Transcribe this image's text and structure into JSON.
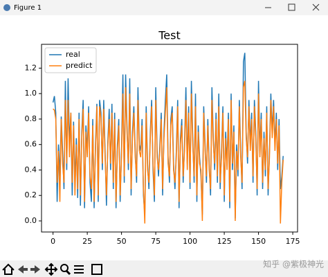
{
  "window": {
    "title": "Figure 1"
  },
  "watermark": "知乎 @紫极神光",
  "chart_data": {
    "type": "line",
    "title": "Test",
    "x": [
      0,
      1,
      2,
      3,
      4,
      5,
      6,
      7,
      8,
      9,
      10,
      11,
      12,
      13,
      14,
      15,
      16,
      17,
      18,
      19,
      20,
      21,
      22,
      23,
      24,
      25,
      26,
      27,
      28,
      29,
      30,
      31,
      32,
      33,
      34,
      35,
      36,
      37,
      38,
      39,
      40,
      41,
      42,
      43,
      44,
      45,
      46,
      47,
      48,
      49,
      50,
      51,
      52,
      53,
      54,
      55,
      56,
      57,
      58,
      59,
      60,
      61,
      62,
      63,
      64,
      65,
      66,
      67,
      68,
      69,
      70,
      71,
      72,
      73,
      74,
      75,
      76,
      77,
      78,
      79,
      80,
      81,
      82,
      83,
      84,
      85,
      86,
      87,
      88,
      89,
      90,
      91,
      92,
      93,
      94,
      95,
      96,
      97,
      98,
      99,
      100,
      101,
      102,
      103,
      104,
      105,
      106,
      107,
      108,
      109,
      110,
      111,
      112,
      113,
      114,
      115,
      116,
      117,
      118,
      119,
      120,
      121,
      122,
      123,
      124,
      125,
      126,
      127,
      128,
      129,
      130,
      131,
      132,
      133,
      134,
      135,
      136,
      137,
      138,
      139,
      140,
      141,
      142,
      143,
      144,
      145,
      146,
      147,
      148,
      149,
      150,
      151,
      152,
      153,
      154,
      155,
      156,
      157,
      158,
      159,
      160,
      161,
      162,
      163,
      164,
      165,
      166,
      167,
      168
    ],
    "series": [
      {
        "name": "real",
        "color": "#1f77b4",
        "values": [
          0.93,
          0.98,
          0.85,
          0.15,
          0.6,
          0.35,
          0.82,
          0.55,
          0.25,
          1.1,
          0.4,
          1.12,
          0.6,
          0.85,
          0.2,
          0.78,
          0.3,
          0.65,
          0.18,
          0.85,
          0.12,
          0.7,
          0.95,
          0.1,
          0.75,
          0.55,
          0.9,
          0.3,
          0.15,
          0.8,
          0.1,
          0.6,
          0.92,
          0.15,
          0.95,
          0.85,
          0.4,
          0.95,
          0.55,
          0.12,
          0.62,
          0.88,
          0.4,
          0.92,
          0.25,
          0.85,
          0.1,
          0.6,
          0.8,
          0.15,
          0.55,
          1.15,
          0.3,
          1.15,
          0.75,
          0.4,
          1.12,
          0.2,
          0.7,
          0.9,
          0.55,
          0.3,
          1.05,
          0.6,
          0.55,
          0.8,
          0.2,
          0.05,
          0.9,
          0.45,
          0.25,
          0.7,
          0.95,
          0.4,
          0.15,
          1.05,
          0.55,
          0.35,
          0.6,
          0.85,
          0.2,
          0.7,
          0.95,
          1.15,
          0.5,
          0.3,
          0.8,
          0.9,
          0.45,
          0.25,
          0.55,
          0.95,
          0.1,
          0.65,
          0.8,
          0.3,
          0.6,
          1.05,
          0.45,
          0.9,
          0.25,
          1.1,
          0.65,
          0.3,
          1.0,
          0.15,
          0.75,
          0.5,
          0.35,
          0.05,
          0.9,
          0.6,
          0.3,
          0.8,
          0.45,
          0.2,
          1.05,
          0.65,
          0.4,
          0.85,
          0.3,
          1.0,
          0.25,
          0.55,
          0.9,
          0.15,
          0.7,
          0.45,
          0.85,
          0.1,
          1.0,
          0.4,
          0.75,
          0.02,
          0.6,
          0.35,
          0.95,
          0.55,
          0.25,
          1.25,
          1.32,
          0.7,
          0.45,
          0.95,
          0.6,
          0.85,
          0.3,
          0.95,
          0.7,
          0.2,
          1.1,
          0.55,
          0.85,
          0.25,
          0.7,
          0.35,
          0.9,
          0.2,
          0.55,
          1.0,
          0.7,
          0.95,
          0.6,
          0.85,
          0.4,
          0.8,
          0.25,
          0.35,
          0.51
        ]
      },
      {
        "name": "predict",
        "color": "#ff7f0e",
        "values": [
          0.88,
          0.87,
          0.8,
          0.3,
          0.55,
          0.15,
          0.8,
          0.45,
          0.3,
          0.95,
          0.45,
          0.95,
          0.5,
          0.85,
          0.3,
          0.75,
          0.2,
          0.6,
          0.25,
          0.8,
          0.2,
          0.65,
          0.88,
          0.15,
          0.7,
          0.5,
          0.85,
          0.35,
          0.25,
          0.75,
          0.15,
          0.55,
          0.9,
          0.2,
          0.9,
          0.8,
          0.45,
          0.88,
          0.5,
          0.2,
          0.58,
          0.8,
          0.45,
          0.85,
          0.3,
          0.8,
          0.15,
          0.55,
          0.75,
          0.2,
          0.5,
          1.0,
          0.35,
          1.05,
          0.7,
          0.45,
          1.0,
          0.25,
          0.65,
          0.85,
          0.5,
          0.35,
          0.95,
          0.55,
          0.5,
          0.75,
          0.25,
          -0.02,
          0.85,
          0.4,
          0.3,
          0.65,
          0.9,
          0.45,
          0.2,
          0.95,
          0.5,
          0.4,
          0.55,
          0.8,
          0.25,
          0.65,
          0.85,
          1.05,
          0.45,
          0.35,
          0.75,
          0.85,
          0.4,
          0.3,
          0.5,
          0.9,
          0.15,
          0.6,
          0.75,
          0.35,
          0.55,
          0.95,
          0.4,
          0.85,
          0.3,
          1.0,
          0.6,
          0.35,
          0.9,
          0.2,
          0.7,
          0.45,
          0.4,
          0.0,
          0.85,
          0.55,
          0.35,
          0.75,
          0.4,
          0.25,
          0.95,
          0.6,
          0.45,
          0.8,
          0.35,
          0.9,
          0.3,
          0.5,
          0.85,
          0.2,
          0.65,
          0.4,
          0.8,
          0.15,
          0.95,
          0.45,
          0.7,
          0.0,
          0.55,
          0.4,
          0.9,
          0.5,
          0.3,
          1.05,
          1.1,
          0.65,
          0.5,
          0.9,
          0.55,
          0.8,
          0.35,
          0.9,
          0.65,
          0.25,
          1.0,
          0.5,
          0.8,
          0.3,
          0.65,
          0.4,
          0.85,
          0.25,
          0.5,
          0.95,
          0.65,
          0.9,
          0.55,
          0.8,
          0.45,
          0.75,
          -0.02,
          0.3,
          0.48
        ]
      }
    ],
    "xlim": [
      -8.4,
      178.5
    ],
    "ylim": [
      -0.087,
      1.387
    ],
    "xticks": [
      0,
      25,
      50,
      75,
      100,
      125,
      150,
      175
    ],
    "yticks": [
      {
        "value": 0,
        "label": "0.0"
      },
      0.2,
      0.4,
      0.6,
      0.8,
      {
        "value": 1,
        "label": "1.0"
      },
      1.2
    ],
    "legend": "upper left"
  }
}
